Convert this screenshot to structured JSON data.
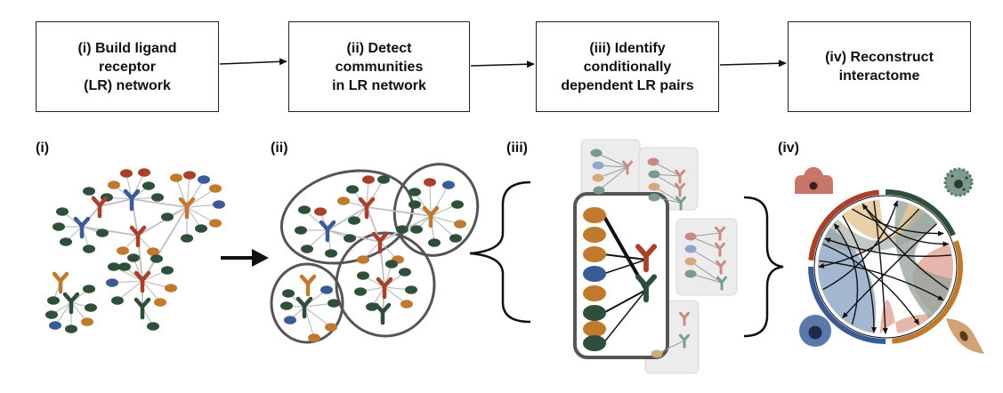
{
  "steps": [
    {
      "lines": [
        "(i) Build ligand",
        "receptor",
        "(LR) network"
      ]
    },
    {
      "lines": [
        "(ii) Detect",
        "communities",
        "in LR network"
      ]
    },
    {
      "lines": [
        "(iii) Identify",
        "conditionally",
        "dependent LR pairs"
      ]
    },
    {
      "lines": [
        "(iv) Reconstruct",
        "interactome"
      ]
    }
  ],
  "panels": {
    "p1": "(i)",
    "p2": "(ii)",
    "p3": "(iii)",
    "p4": "(iv)"
  },
  "colors": {
    "red": "#a8402c",
    "blue": "#3a5b95",
    "orange": "#c07a2e",
    "green": "#2f4f3a",
    "edge": "#bfbfbf",
    "outline": "#555555",
    "chord_blue": "#9aafcc",
    "chord_red": "#e0a99a",
    "chord_green": "#9aa59e",
    "chord_orange": "#e6c89a"
  },
  "icons": {
    "receptor": "y-shaped-receptor-icon",
    "ligand": "ellipse-ligand-icon",
    "cells": [
      "red-cell-icon",
      "green-cell-icon",
      "blue-cell-icon",
      "orange-cell-icon"
    ]
  }
}
